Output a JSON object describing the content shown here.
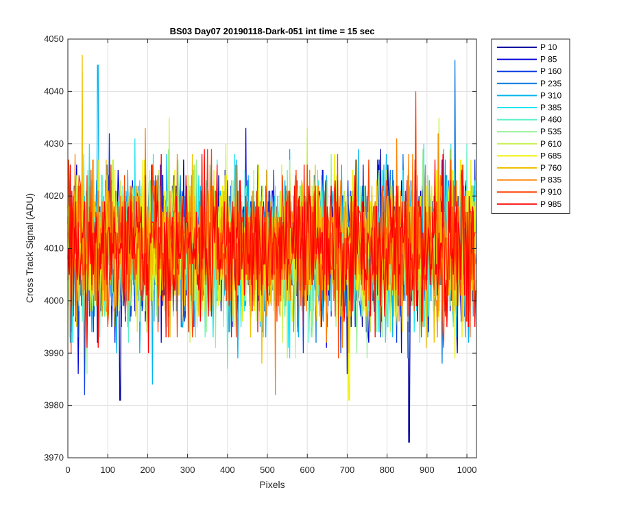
{
  "chart_data": {
    "type": "line",
    "title": "BS03 Day07 20190118-Dark-051 int time = 15 sec",
    "xlabel": "Pixels",
    "ylabel": "Cross Track Signal (ADU)",
    "xlim": [
      0,
      1024
    ],
    "ylim": [
      3970,
      4050
    ],
    "xticks": [
      0,
      100,
      200,
      300,
      400,
      500,
      600,
      700,
      800,
      900,
      1000
    ],
    "yticks": [
      3970,
      3980,
      3990,
      4000,
      4010,
      4020,
      4030,
      4040,
      4050
    ],
    "grid": true,
    "legend_position": "outside-top-right",
    "noise_summary": {
      "mean": 4010,
      "typical_min": 3990,
      "typical_max": 4032
    },
    "annotated_extremes": [
      {
        "series": "P 10",
        "x": 855,
        "y": 3973
      },
      {
        "series": "P 10",
        "x": 131,
        "y": 3981
      },
      {
        "series": "P 760",
        "x": 36,
        "y": 4047
      },
      {
        "series": "P 310",
        "x": 75,
        "y": 4045
      },
      {
        "series": "P 235",
        "x": 970,
        "y": 4046
      },
      {
        "series": "P 685",
        "x": 705,
        "y": 3981
      },
      {
        "series": "P 835",
        "x": 520,
        "y": 3982
      }
    ],
    "series": [
      {
        "name": "P 10",
        "color": "#0000a0"
      },
      {
        "name": "P 85",
        "color": "#0000dc"
      },
      {
        "name": "P 160",
        "color": "#0a3ce6"
      },
      {
        "name": "P 235",
        "color": "#0b78e0"
      },
      {
        "name": "P 310",
        "color": "#00b4f0"
      },
      {
        "name": "P 385",
        "color": "#1ee6f0"
      },
      {
        "name": "P 460",
        "color": "#5af0c8"
      },
      {
        "name": "P 535",
        "color": "#96f096"
      },
      {
        "name": "P 610",
        "color": "#c8f050"
      },
      {
        "name": "P 685",
        "color": "#f0f000"
      },
      {
        "name": "P 760",
        "color": "#f0c000"
      },
      {
        "name": "P 835",
        "color": "#ff8000"
      },
      {
        "name": "P 910",
        "color": "#ff4000"
      },
      {
        "name": "P 985",
        "color": "#ff0000"
      }
    ]
  }
}
